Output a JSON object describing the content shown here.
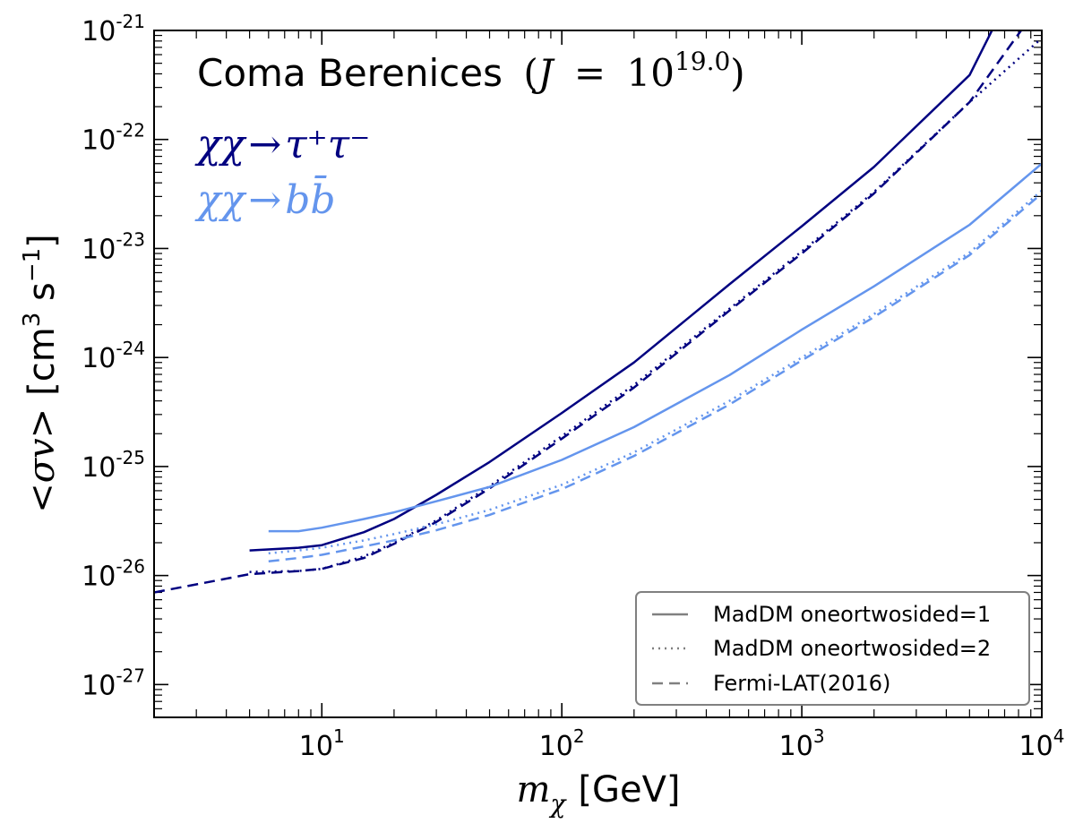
{
  "chart_data": {
    "type": "line",
    "xscale": "log",
    "yscale": "log",
    "xlim": [
      2,
      10000
    ],
    "ylim": [
      5e-28,
      1e-21
    ],
    "title": {
      "name": "Coma Berenices",
      "j_prefix": "(",
      "j_symbol": "J",
      "j_eq": "=",
      "j_base": "10",
      "j_exp": "19.0",
      "j_suffix": ")"
    },
    "channels": [
      {
        "label_left": "χχ",
        "arrow": "→",
        "label_right": "τ⁺τ⁻",
        "color": "#000080"
      },
      {
        "label_left": "χχ",
        "arrow": "→",
        "label_right": "bb̄",
        "color": "#6495ED"
      }
    ],
    "xlabel": {
      "symbol": "m",
      "sub": "χ",
      "unit": "[GeV]"
    },
    "ylabel": {
      "math": "<σv>",
      "unit_a": "[cm",
      "unit_exp": "3",
      "unit_b": " s",
      "unit_exp2": "−1",
      "unit_c": "]"
    },
    "xticks": [
      {
        "value": 10,
        "base": "10",
        "exp": "1"
      },
      {
        "value": 100,
        "base": "10",
        "exp": "2"
      },
      {
        "value": 1000,
        "base": "10",
        "exp": "3"
      },
      {
        "value": 10000,
        "base": "10",
        "exp": "4"
      }
    ],
    "yticks": [
      {
        "value": 1e-27,
        "base": "10",
        "exp": "-27"
      },
      {
        "value": 1e-26,
        "base": "10",
        "exp": "-26"
      },
      {
        "value": 1e-25,
        "base": "10",
        "exp": "-25"
      },
      {
        "value": 1e-24,
        "base": "10",
        "exp": "-24"
      },
      {
        "value": 1e-23,
        "base": "10",
        "exp": "-23"
      },
      {
        "value": 1e-22,
        "base": "10",
        "exp": "-22"
      },
      {
        "value": 1e-21,
        "base": "10",
        "exp": "-21"
      }
    ],
    "legend": {
      "position": "lower-right",
      "entries": [
        {
          "label": "MadDM oneortwosided=1",
          "style": "solid"
        },
        {
          "label": "MadDM oneortwosided=2",
          "style": "dotted"
        },
        {
          "label": "Fermi-LAT(2016)",
          "style": "dashed"
        }
      ],
      "line_color": "#808080"
    },
    "series": [
      {
        "channel": "tau",
        "style": "solid",
        "color": "#000080",
        "x": [
          5,
          8,
          10,
          15,
          20,
          30,
          50,
          100,
          200,
          500,
          1000,
          2000,
          5000,
          6200
        ],
        "y": [
          1.7e-26,
          1.8e-26,
          1.9e-26,
          2.5e-26,
          3.3e-26,
          5.5e-26,
          1.1e-25,
          3.1e-25,
          9e-25,
          4.7e-24,
          1.6e-23,
          5.6e-23,
          3.9e-22,
          1e-21
        ]
      },
      {
        "channel": "tau",
        "style": "dotted",
        "color": "#000080",
        "x": [
          5,
          8,
          10,
          15,
          20,
          30,
          50,
          100,
          200,
          500,
          1000,
          2000,
          5000,
          10000
        ],
        "y": [
          1.08e-26,
          1.1e-26,
          1.15e-26,
          1.5e-26,
          2e-26,
          3.2e-26,
          6.6e-26,
          1.9e-25,
          5.6e-25,
          2.8e-24,
          9.4e-24,
          3.3e-23,
          2.2e-22,
          8.5e-22
        ]
      },
      {
        "channel": "tau",
        "style": "dashed",
        "color": "#000080",
        "x": [
          2,
          3,
          5,
          8,
          10,
          15,
          20,
          30,
          50,
          100,
          200,
          500,
          1000,
          2000,
          5000,
          8200
        ],
        "y": [
          7e-27,
          8.3e-27,
          1.03e-26,
          1.1e-26,
          1.15e-26,
          1.45e-26,
          1.95e-26,
          3.1e-26,
          6.3e-26,
          1.8e-25,
          5.3e-25,
          2.7e-24,
          9e-24,
          3.2e-23,
          2.2e-22,
          1e-21
        ]
      },
      {
        "channel": "bb",
        "style": "solid",
        "color": "#6495ED",
        "x": [
          6,
          8,
          10,
          15,
          20,
          30,
          50,
          100,
          200,
          500,
          1000,
          2000,
          5000,
          10000
        ],
        "y": [
          2.55e-26,
          2.55e-26,
          2.75e-26,
          3.3e-26,
          3.8e-26,
          4.8e-26,
          6.5e-26,
          1.15e-25,
          2.3e-25,
          6.9e-25,
          1.8e-24,
          4.5e-24,
          1.65e-23,
          6e-23
        ]
      },
      {
        "channel": "bb",
        "style": "dotted",
        "color": "#6495ED",
        "x": [
          6,
          8,
          10,
          15,
          20,
          30,
          50,
          100,
          200,
          500,
          1000,
          2000,
          5000,
          10000
        ],
        "y": [
          1.6e-26,
          1.7e-26,
          1.8e-26,
          2.1e-26,
          2.4e-26,
          2.95e-26,
          4e-26,
          6.8e-26,
          1.35e-25,
          4e-25,
          1e-24,
          2.5e-24,
          9.2e-24,
          3.4e-23
        ]
      },
      {
        "channel": "bb",
        "style": "dashed",
        "color": "#6495ED",
        "x": [
          6,
          8,
          10,
          15,
          20,
          30,
          50,
          100,
          200,
          500,
          1000,
          2000,
          5000,
          10000
        ],
        "y": [
          1.35e-26,
          1.45e-26,
          1.55e-26,
          1.85e-26,
          2.1e-26,
          2.6e-26,
          3.6e-26,
          6.2e-26,
          1.25e-25,
          3.7e-25,
          9.4e-25,
          2.35e-24,
          8.7e-24,
          3.2e-23
        ]
      }
    ]
  }
}
